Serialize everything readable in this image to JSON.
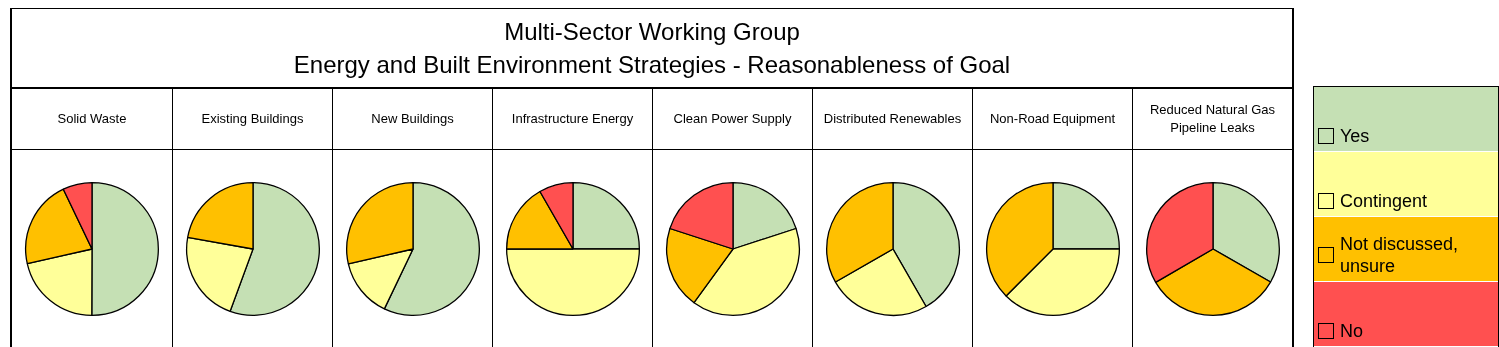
{
  "chart_data": [
    {
      "type": "pie",
      "title": "Solid Waste",
      "annotations": [
        "Multi-Sector Working Group",
        "Energy and Built Environment Strategies - Reasonableness of Goal"
      ],
      "legend": "right",
      "categories": [
        "Yes",
        "Contingent",
        "Not discussed, unsure",
        "No"
      ],
      "values": [
        50,
        21.4,
        21.4,
        7.1
      ],
      "colors": [
        "#c5e0b4",
        "#ffff99",
        "#ffc000",
        "#ff5050"
      ]
    },
    {
      "type": "pie",
      "title": "Existing Buildings",
      "categories": [
        null,
        null,
        null,
        null
      ],
      "values": [
        55.6,
        22.2,
        22.2,
        0
      ],
      "colors": [
        "#c5e0b4",
        "#ffff99",
        "#ffc000",
        "#ff5050"
      ]
    },
    {
      "type": "pie",
      "title": "New Buildings",
      "categories": [
        null,
        null,
        null,
        null
      ],
      "values": [
        57.1,
        14.3,
        28.6,
        0
      ],
      "colors": [
        "#c5e0b4",
        "#ffff99",
        "#ffc000",
        "#ff5050"
      ]
    },
    {
      "type": "pie",
      "title": "Infrastructure Energy",
      "categories": [
        null,
        null,
        null,
        null
      ],
      "values": [
        25,
        50,
        16.7,
        8.3
      ],
      "colors": [
        "#c5e0b4",
        "#ffff99",
        "#ffc000",
        "#ff5050"
      ]
    },
    {
      "type": "pie",
      "title": "Clean Power Supply",
      "categories": [
        null,
        null,
        null,
        null
      ],
      "values": [
        20,
        40,
        20,
        20
      ],
      "colors": [
        "#c5e0b4",
        "#ffff99",
        "#ffc000",
        "#ff5050"
      ]
    },
    {
      "type": "pie",
      "title": "Distributed Renewables",
      "categories": [
        null,
        null,
        null,
        null
      ],
      "values": [
        41.7,
        25,
        33.3,
        0
      ],
      "colors": [
        "#c5e0b4",
        "#ffff99",
        "#ffc000",
        "#ff5050"
      ]
    },
    {
      "type": "pie",
      "title": "Non-Road Equipment",
      "categories": [
        null,
        null,
        null,
        null
      ],
      "values": [
        25,
        37.5,
        37.5,
        0
      ],
      "colors": [
        "#c5e0b4",
        "#ffff99",
        "#ffc000",
        "#ff5050"
      ]
    },
    {
      "type": "pie",
      "title": "Reduced Natural Gas Pipeline Leaks",
      "categories": [
        null,
        null,
        null,
        null
      ],
      "values": [
        33.3,
        0,
        33.3,
        33.4
      ],
      "colors": [
        "#c5e0b4",
        "#ffff99",
        "#ffc000",
        "#ff5050"
      ]
    }
  ]
}
